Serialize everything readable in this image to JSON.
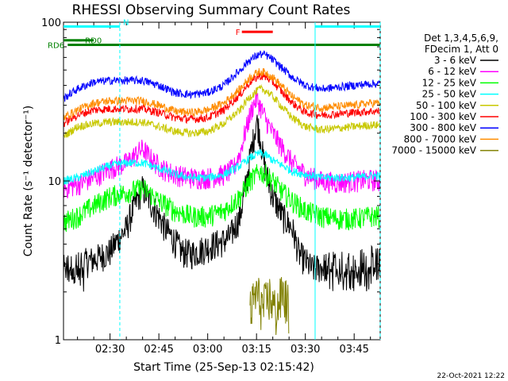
{
  "chart_data": {
    "type": "line",
    "title": "RHESSI Observing Summary Count Rates",
    "xlabel": "Start Time (25-Sep-13 02:15:42)",
    "ylabel": "Count Rate (s⁻¹ detector⁻¹)",
    "yscale": "log",
    "xlim": [
      15.7,
      113.0
    ],
    "ylim": [
      1,
      100
    ],
    "x_unit": "minutes after 02:00 UT",
    "x_ticks": [
      30,
      45,
      60,
      75,
      90,
      105
    ],
    "x_tick_labels": [
      "02:30",
      "02:45",
      "03:00",
      "03:15",
      "03:30",
      "03:45"
    ],
    "y_ticks": [
      1,
      10,
      100
    ],
    "y_tick_labels": [
      "1",
      "10",
      "100"
    ],
    "legend_header": [
      "Det 1,3,4,5,6,9,",
      "FDecim 1, Att 0"
    ],
    "legend_position": "right",
    "footer_date": "22-Oct-2021 12:22",
    "series": [
      {
        "name": "3 - 6 keV",
        "color": "#000000",
        "x": [
          15.7,
          20,
          25,
          30,
          35,
          40,
          43,
          47,
          52,
          55,
          58,
          62,
          65,
          67,
          70,
          72,
          74,
          75,
          76,
          77,
          78,
          80,
          83,
          86,
          88,
          92,
          96,
          100,
          105,
          110,
          113
        ],
        "y": [
          2.8,
          3.0,
          3.2,
          3.6,
          5.0,
          9.0,
          7.0,
          5.0,
          3.6,
          3.5,
          3.7,
          4.0,
          4.2,
          4.5,
          6.0,
          10.0,
          18.0,
          24.0,
          20.0,
          14.0,
          11.0,
          8.0,
          6.0,
          5.0,
          3.5,
          2.8,
          2.9,
          3.0,
          3.0,
          3.2,
          3.1
        ]
      },
      {
        "name": "6 - 12 keV",
        "color": "#ff00ff",
        "x": [
          15.7,
          20,
          25,
          30,
          35,
          40,
          43,
          46,
          50,
          55,
          60,
          65,
          68,
          70,
          72,
          74,
          75,
          76,
          78,
          80,
          83,
          86,
          90,
          95,
          100,
          105,
          110,
          113
        ],
        "y": [
          9.0,
          9.5,
          10.5,
          12.0,
          13.0,
          16.0,
          13.5,
          12.0,
          11.0,
          10.5,
          10.5,
          11.0,
          12.0,
          15.0,
          22.0,
          30.0,
          33.0,
          30.0,
          24.0,
          20.0,
          16.0,
          13.0,
          11.0,
          10.0,
          9.8,
          10.0,
          10.2,
          10.0
        ]
      },
      {
        "name": "12 - 25 keV",
        "color": "#00ff00",
        "x": [
          15.7,
          20,
          25,
          30,
          35,
          40,
          45,
          50,
          55,
          60,
          65,
          70,
          73,
          76,
          78,
          80,
          83,
          86,
          90,
          95,
          100,
          105,
          110,
          113
        ],
        "y": [
          5.5,
          6.0,
          7.0,
          8.0,
          8.5,
          9.0,
          7.5,
          6.5,
          6.0,
          6.0,
          6.5,
          8.0,
          10.0,
          11.5,
          11.0,
          10.0,
          8.5,
          7.5,
          6.5,
          6.0,
          5.8,
          5.8,
          6.0,
          6.0
        ]
      },
      {
        "name": "25 - 50 keV",
        "color": "#00ffff",
        "x": [
          15.7,
          20,
          25,
          30,
          35,
          40,
          45,
          50,
          55,
          60,
          65,
          70,
          73,
          76,
          78,
          80,
          83,
          86,
          90,
          95,
          100,
          105,
          110,
          113
        ],
        "y": [
          10.0,
          10.5,
          11.5,
          12.5,
          13.0,
          13.0,
          12.0,
          11.0,
          10.5,
          10.5,
          11.0,
          12.5,
          14.0,
          15.0,
          14.5,
          13.5,
          12.5,
          11.5,
          11.0,
          10.5,
          10.5,
          10.5,
          10.8,
          10.8
        ]
      },
      {
        "name": "50 - 100 keV",
        "color": "#c8c800",
        "x": [
          15.7,
          20,
          25,
          30,
          35,
          40,
          45,
          50,
          55,
          60,
          65,
          70,
          73,
          76,
          78,
          80,
          83,
          86,
          90,
          95,
          100,
          105,
          110,
          113
        ],
        "y": [
          19.0,
          22.0,
          23.0,
          23.5,
          23.5,
          23.5,
          22.0,
          20.5,
          20.0,
          20.5,
          23.0,
          28.0,
          34.0,
          38.0,
          37.0,
          34.0,
          29.0,
          25.0,
          22.0,
          21.0,
          21.5,
          22.0,
          22.5,
          22.5
        ]
      },
      {
        "name": "100 - 300 keV",
        "color": "#ff0000",
        "x": [
          15.7,
          20,
          25,
          30,
          35,
          40,
          45,
          50,
          55,
          60,
          65,
          70,
          73,
          76,
          78,
          80,
          83,
          86,
          90,
          95,
          100,
          105,
          110,
          113
        ],
        "y": [
          23.0,
          26.0,
          28.0,
          28.5,
          28.5,
          28.5,
          27.0,
          25.0,
          24.5,
          25.0,
          28.0,
          35.0,
          42.0,
          46.0,
          45.0,
          42.0,
          36.0,
          31.0,
          27.0,
          26.0,
          26.5,
          27.0,
          27.5,
          27.5
        ]
      },
      {
        "name": "300 - 800 keV",
        "color": "#0000ff",
        "x": [
          15.7,
          20,
          25,
          30,
          35,
          40,
          45,
          50,
          55,
          60,
          65,
          70,
          73,
          76,
          78,
          80,
          83,
          86,
          90,
          95,
          100,
          105,
          110,
          113
        ],
        "y": [
          33.0,
          38.0,
          42.0,
          43.0,
          43.0,
          43.0,
          40.0,
          36.0,
          35.0,
          36.0,
          40.0,
          50.0,
          58.0,
          63.0,
          62.0,
          58.0,
          51.0,
          45.0,
          40.0,
          38.0,
          39.0,
          40.0,
          41.0,
          41.0
        ]
      },
      {
        "name": "800 - 7000 keV",
        "color": "#ff8c00",
        "x": [
          15.7,
          20,
          25,
          30,
          35,
          40,
          45,
          50,
          55,
          60,
          65,
          70,
          73,
          76,
          78,
          80,
          83,
          86,
          90,
          95,
          100,
          105,
          110,
          113
        ],
        "y": [
          25.0,
          28.0,
          31.0,
          32.0,
          32.0,
          32.0,
          30.0,
          27.5,
          27.0,
          28.0,
          31.0,
          38.0,
          45.0,
          49.0,
          48.0,
          45.0,
          39.0,
          34.0,
          30.0,
          29.0,
          29.5,
          30.0,
          31.0,
          31.0
        ]
      },
      {
        "name": "7000 - 15000 keV",
        "color": "#808000",
        "x": [
          73,
          75,
          77,
          79,
          81,
          83,
          85
        ],
        "y": [
          1.5,
          2.0,
          1.6,
          1.9,
          1.5,
          2.0,
          1.6
        ]
      }
    ],
    "annotations": [
      {
        "label": "N",
        "color": "#00ffff",
        "x_range": [
          15.7,
          33.0
        ],
        "y": 94
      },
      {
        "label": "",
        "color": "#00ffff",
        "x_range": [
          93.0,
          113.0
        ],
        "y": 94
      },
      {
        "label": "F",
        "color": "#ff0000",
        "x_range": [
          70.5,
          80.0
        ],
        "y": 87
      },
      {
        "label": "RD0",
        "color": "#008000",
        "x_range": [
          15.7,
          25.0
        ],
        "y": 77
      },
      {
        "label": "RD6",
        "color": "#008000",
        "x_range": [
          17.0,
          113.0
        ],
        "y": 72
      }
    ]
  }
}
